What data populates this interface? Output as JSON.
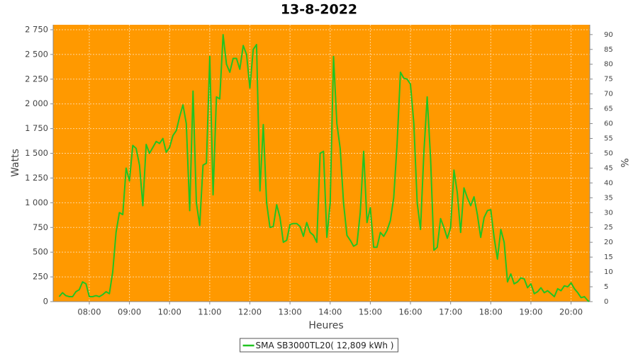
{
  "chart_data": {
    "type": "line",
    "title": "13-8-2022",
    "xlabel": "Heures",
    "ylabel": "Watts",
    "y2label": "%",
    "x": [
      "07:15",
      "07:20",
      "07:25",
      "07:30",
      "07:35",
      "07:40",
      "07:45",
      "07:50",
      "07:55",
      "08:00",
      "08:05",
      "08:10",
      "08:15",
      "08:20",
      "08:25",
      "08:30",
      "08:35",
      "08:40",
      "08:45",
      "08:50",
      "08:55",
      "09:00",
      "09:05",
      "09:10",
      "09:15",
      "09:20",
      "09:25",
      "09:30",
      "09:35",
      "09:40",
      "09:45",
      "09:50",
      "09:55",
      "10:00",
      "10:05",
      "10:10",
      "10:15",
      "10:20",
      "10:25",
      "10:30",
      "10:35",
      "10:40",
      "10:45",
      "10:50",
      "10:55",
      "11:00",
      "11:05",
      "11:10",
      "11:15",
      "11:20",
      "11:25",
      "11:30",
      "11:35",
      "11:40",
      "11:45",
      "11:50",
      "11:55",
      "12:00",
      "12:05",
      "12:10",
      "12:15",
      "12:20",
      "12:25",
      "12:30",
      "12:35",
      "12:40",
      "12:45",
      "12:50",
      "12:55",
      "13:00",
      "13:05",
      "13:10",
      "13:15",
      "13:20",
      "13:25",
      "13:30",
      "13:35",
      "13:40",
      "13:45",
      "13:50",
      "13:55",
      "14:00",
      "14:05",
      "14:10",
      "14:15",
      "14:20",
      "14:25",
      "14:30",
      "14:35",
      "14:40",
      "14:45",
      "14:50",
      "14:55",
      "15:00",
      "15:05",
      "15:10",
      "15:15",
      "15:20",
      "15:25",
      "15:30",
      "15:35",
      "15:40",
      "15:45",
      "15:50",
      "15:55",
      "16:00",
      "16:05",
      "16:10",
      "16:15",
      "16:20",
      "16:25",
      "16:30",
      "16:35",
      "16:40",
      "16:45",
      "16:50",
      "16:55",
      "17:00",
      "17:05",
      "17:10",
      "17:15",
      "17:20",
      "17:25",
      "17:30",
      "17:35",
      "17:40",
      "17:45",
      "17:50",
      "17:55",
      "18:00",
      "18:05",
      "18:10",
      "18:15",
      "18:20",
      "18:25",
      "18:30",
      "18:35",
      "18:40",
      "18:45",
      "18:50",
      "18:55",
      "19:00",
      "19:05",
      "19:10",
      "19:15",
      "19:20",
      "19:25",
      "19:30",
      "19:35",
      "19:40",
      "19:45",
      "19:50",
      "19:55",
      "20:00",
      "20:05",
      "20:10",
      "20:15",
      "20:20",
      "20:25",
      "20:27"
    ],
    "series": [
      {
        "name": "SMA SB3000TL20( 12,809 kWh )",
        "color": "#22c422",
        "values": [
          50,
          90,
          60,
          50,
          50,
          100,
          120,
          200,
          180,
          50,
          50,
          60,
          50,
          70,
          100,
          80,
          300,
          700,
          900,
          880,
          1350,
          1220,
          1580,
          1550,
          1380,
          970,
          1590,
          1500,
          1560,
          1620,
          1600,
          1650,
          1510,
          1560,
          1680,
          1730,
          1870,
          1990,
          1800,
          920,
          2130,
          1000,
          770,
          1380,
          1400,
          2480,
          1080,
          2070,
          2050,
          2700,
          2400,
          2320,
          2460,
          2460,
          2350,
          2590,
          2500,
          2160,
          2550,
          2600,
          1120,
          1790,
          1000,
          750,
          760,
          980,
          850,
          600,
          620,
          780,
          790,
          790,
          760,
          660,
          800,
          700,
          670,
          600,
          1500,
          1520,
          650,
          1000,
          2480,
          1800,
          1550,
          1000,
          670,
          620,
          560,
          580,
          900,
          1520,
          800,
          950,
          550,
          550,
          700,
          660,
          720,
          820,
          1050,
          1600,
          2320,
          2260,
          2250,
          2200,
          1800,
          1000,
          730,
          1500,
          2070,
          1450,
          520,
          550,
          840,
          750,
          640,
          750,
          1330,
          1100,
          700,
          1150,
          1050,
          970,
          1060,
          880,
          650,
          850,
          920,
          930,
          650,
          430,
          730,
          600,
          200,
          280,
          180,
          200,
          240,
          230,
          140,
          180,
          80,
          100,
          140,
          90,
          110,
          80,
          50,
          130,
          110,
          160,
          150,
          190,
          130,
          90,
          40,
          50,
          10,
          0
        ]
      }
    ],
    "xlim": [
      "07:06",
      "20:28"
    ],
    "xticks": [
      "08:00",
      "09:00",
      "10:00",
      "11:00",
      "12:00",
      "13:00",
      "14:00",
      "15:00",
      "16:00",
      "17:00",
      "18:00",
      "19:00",
      "20:00"
    ],
    "ylim": [
      0,
      2800
    ],
    "yticks": [
      0,
      250,
      500,
      750,
      {
        "value": 1000,
        "label": "1 000"
      },
      {
        "value": 1250,
        "label": "1 250"
      },
      {
        "value": 1500,
        "label": "1 500"
      },
      {
        "value": 1750,
        "label": "1 750"
      },
      {
        "value": 2000,
        "label": "2 000"
      },
      {
        "value": 2250,
        "label": "2 250"
      },
      {
        "value": 2500,
        "label": "2 500"
      },
      {
        "value": 2750,
        "label": "2 750"
      }
    ],
    "y2lim": [
      0,
      93.3
    ],
    "y2ticks": [
      0,
      5,
      10,
      15,
      20,
      25,
      30,
      35,
      40,
      45,
      50,
      55,
      60,
      65,
      70,
      75,
      80,
      85,
      90
    ],
    "grid": true,
    "background": "#ff9900",
    "legend": "bottom"
  }
}
